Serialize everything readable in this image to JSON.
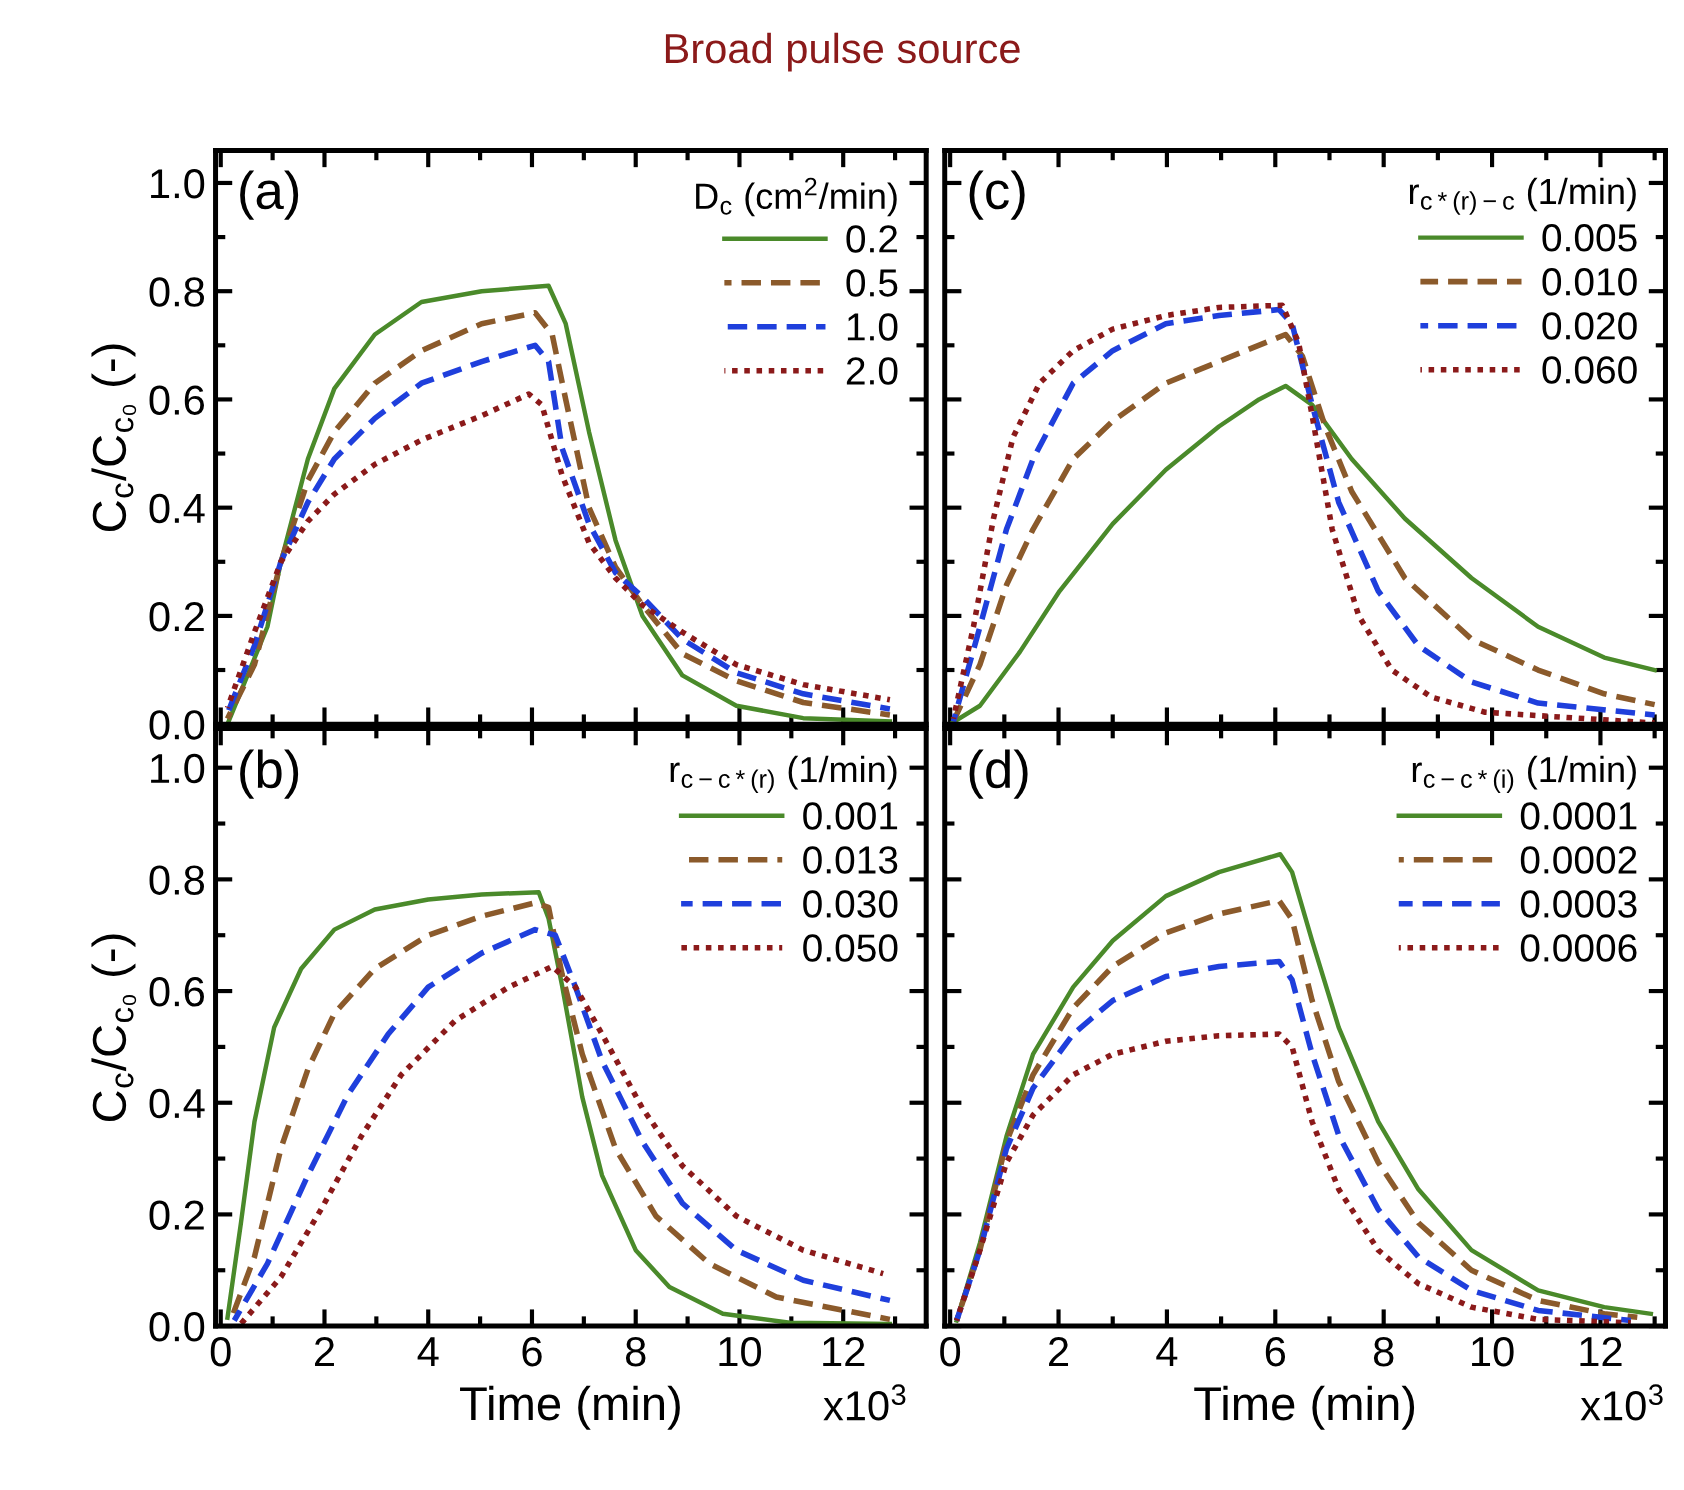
{
  "chart_data": [
    {
      "type": "line",
      "title": "Broad pulse source",
      "annotations": [
        "(a)"
      ],
      "ylabel": "C$_{c}$/C$_{c₀}$ (-)",
      "legend_title": "D$_{c}$ (cm$^{2}$/min)",
      "legend": "top right",
      "tick_labels": "y",
      "grid": false,
      "xlim": [
        -0.1,
        13.6
      ],
      "xticks": [
        0,
        2,
        4,
        6,
        8,
        10,
        12
      ],
      "ylim": [
        0,
        1.06
      ],
      "yticks": [
        {
          "value": 0,
          "label": "0.0"
        },
        {
          "value": 0.2,
          "label": "0.2"
        },
        {
          "value": 0.4,
          "label": "0.4"
        },
        {
          "value": 0.6,
          "label": "0.6"
        },
        {
          "value": 0.8,
          "label": "0.8"
        },
        {
          "value": 1.0,
          "label": "1.0"
        }
      ],
      "series": [
        {
          "name": "0.2",
          "color": "#4a8a2a",
          "line_style": "solid",
          "x": [
            0.13,
            0.9,
            1.16,
            1.68,
            2.19,
            2.97,
            3.87,
            5.03,
            6.32,
            6.65,
            7.1,
            7.61,
            8.13,
            8.9,
            9.94,
            11.23,
            12.9
          ],
          "values": [
            0.0,
            0.18,
            0.3,
            0.49,
            0.62,
            0.72,
            0.78,
            0.8,
            0.81,
            0.74,
            0.54,
            0.34,
            0.2,
            0.09,
            0.034,
            0.011,
            0.005
          ]
        },
        {
          "name": "0.5",
          "color": "#8b5a2b",
          "line_style": "dashed",
          "x": [
            0.13,
            0.65,
            1.16,
            1.68,
            2.19,
            2.97,
            3.87,
            5.03,
            6.06,
            6.39,
            6.65,
            7.1,
            7.61,
            8.13,
            8.9,
            9.94,
            11.23,
            12.9
          ],
          "values": [
            0.01,
            0.11,
            0.3,
            0.45,
            0.54,
            0.63,
            0.69,
            0.74,
            0.76,
            0.72,
            0.6,
            0.4,
            0.29,
            0.22,
            0.13,
            0.08,
            0.04,
            0.017
          ]
        },
        {
          "name": "1.0",
          "color": "#1f3fdc",
          "line_style": "dashed",
          "x": [
            0.13,
            0.65,
            1.16,
            1.68,
            2.19,
            2.97,
            3.87,
            5.03,
            6.06,
            6.32,
            6.58,
            7.1,
            7.61,
            8.13,
            8.9,
            9.94,
            11.23,
            12.9
          ],
          "values": [
            0.02,
            0.145,
            0.3,
            0.41,
            0.49,
            0.565,
            0.63,
            0.67,
            0.7,
            0.67,
            0.51,
            0.37,
            0.28,
            0.235,
            0.157,
            0.095,
            0.056,
            0.028
          ]
        },
        {
          "name": "2.0",
          "color": "#8b1a1a",
          "line_style": "dotted",
          "x": [
            0.13,
            0.65,
            1.16,
            1.68,
            2.19,
            2.97,
            3.87,
            5.03,
            5.94,
            6.19,
            6.58,
            7.1,
            7.61,
            8.13,
            8.9,
            9.94,
            11.23,
            12.9
          ],
          "values": [
            0.03,
            0.17,
            0.3,
            0.375,
            0.425,
            0.48,
            0.525,
            0.57,
            0.61,
            0.59,
            0.46,
            0.335,
            0.27,
            0.22,
            0.17,
            0.11,
            0.073,
            0.045
          ]
        }
      ]
    },
    {
      "type": "line",
      "annotations": [
        "(c)"
      ],
      "legend_title": "r$_{c*(r)−c}$ (1/min)",
      "legend": "top right",
      "tick_labels": false,
      "grid": false,
      "xlim": [
        -0.1,
        13.2
      ],
      "xticks": [
        0,
        2,
        4,
        6,
        8,
        10,
        12
      ],
      "ylim": [
        0,
        1.06
      ],
      "yticks": [
        0,
        0.2,
        0.4,
        0.6,
        0.8,
        1.0
      ],
      "series": [
        {
          "name": "0.005",
          "color": "#4a8a2a",
          "line_style": "solid",
          "x": [
            0.0,
            0.55,
            1.29,
            2.02,
            3.0,
            3.98,
            4.96,
            5.7,
            6.19,
            6.68,
            7.41,
            8.39,
            9.62,
            10.85,
            12.07,
            13.0
          ],
          "values": [
            0.0,
            0.034,
            0.134,
            0.246,
            0.37,
            0.47,
            0.55,
            0.6,
            0.625,
            0.59,
            0.49,
            0.38,
            0.27,
            0.18,
            0.123,
            0.1
          ]
        },
        {
          "name": "0.010",
          "color": "#8b5a2b",
          "line_style": "dashed",
          "x": [
            0.06,
            0.55,
            1.04,
            1.53,
            2.27,
            3.0,
            3.98,
            4.96,
            5.94,
            6.19,
            6.5,
            6.92,
            7.41,
            8.39,
            9.62,
            10.85,
            12.07,
            13.0
          ],
          "values": [
            0.005,
            0.11,
            0.257,
            0.36,
            0.49,
            0.56,
            0.63,
            0.67,
            0.71,
            0.72,
            0.68,
            0.55,
            0.43,
            0.27,
            0.157,
            0.1,
            0.056,
            0.036
          ]
        },
        {
          "name": "0.020",
          "color": "#1f3fdc",
          "line_style": "dashed",
          "x": [
            0.06,
            0.55,
            1.04,
            1.53,
            2.27,
            3.0,
            3.98,
            4.96,
            6.07,
            6.31,
            6.68,
            7.17,
            7.9,
            8.64,
            9.62,
            10.85,
            13.0
          ],
          "values": [
            0.005,
            0.18,
            0.36,
            0.49,
            0.63,
            0.69,
            0.74,
            0.755,
            0.766,
            0.74,
            0.59,
            0.41,
            0.246,
            0.145,
            0.078,
            0.039,
            0.017
          ]
        },
        {
          "name": "0.060",
          "color": "#8b1a1a",
          "line_style": "dotted",
          "x": [
            0.06,
            0.43,
            0.8,
            1.16,
            1.65,
            2.27,
            3.0,
            3.98,
            4.96,
            6.13,
            6.43,
            6.68,
            7.05,
            7.54,
            8.15,
            8.88,
            9.87,
            13.0
          ],
          "values": [
            0.01,
            0.18,
            0.38,
            0.53,
            0.63,
            0.69,
            0.73,
            0.755,
            0.77,
            0.774,
            0.705,
            0.57,
            0.36,
            0.2,
            0.1,
            0.05,
            0.022,
            0.002
          ]
        }
      ]
    },
    {
      "type": "line",
      "annotations": [
        "(b)",
        "x10$^{3}$"
      ],
      "xlabel": "Time (min)",
      "ylabel": "C$_{c}$/C$_{c₀}$ (-)",
      "legend_title": "r$_{c−c*(r)}$ (1/min)",
      "legend": "top right",
      "grid": false,
      "xlim": [
        -0.1,
        13.6
      ],
      "xticks": [
        0,
        2,
        4,
        6,
        8,
        10,
        12
      ],
      "ylim": [
        0,
        1.07
      ],
      "yticks": [
        {
          "value": 0,
          "label": "0.0"
        },
        {
          "value": 0.2,
          "label": "0.2"
        },
        {
          "value": 0.4,
          "label": "0.4"
        },
        {
          "value": 0.6,
          "label": "0.6"
        },
        {
          "value": 0.8,
          "label": "0.8"
        },
        {
          "value": 1.0,
          "label": "1.0"
        }
      ],
      "series": [
        {
          "name": "0.001",
          "color": "#4a8a2a",
          "line_style": "solid",
          "x": [
            0.13,
            0.39,
            0.65,
            1.03,
            1.55,
            2.19,
            2.97,
            4.0,
            5.03,
            6.13,
            6.32,
            6.58,
            6.97,
            7.35,
            8.0,
            8.65,
            9.68,
            10.97,
            12.9
          ],
          "values": [
            0.015,
            0.185,
            0.366,
            0.535,
            0.64,
            0.71,
            0.746,
            0.764,
            0.773,
            0.777,
            0.73,
            0.61,
            0.41,
            0.27,
            0.136,
            0.07,
            0.022,
            0.006,
            0.004
          ]
        },
        {
          "name": "0.013",
          "color": "#8b5a2b",
          "line_style": "dashed",
          "x": [
            0.19,
            0.65,
            1.16,
            1.68,
            2.19,
            2.97,
            4.0,
            5.03,
            6.06,
            6.32,
            6.58,
            6.97,
            7.61,
            8.39,
            9.42,
            10.71,
            12.9
          ],
          "values": [
            0.01,
            0.124,
            0.318,
            0.46,
            0.56,
            0.64,
            0.7,
            0.734,
            0.758,
            0.75,
            0.63,
            0.487,
            0.318,
            0.197,
            0.112,
            0.052,
            0.012
          ]
        },
        {
          "name": "0.030",
          "color": "#1f3fdc",
          "line_style": "dashed",
          "x": [
            0.26,
            0.9,
            1.68,
            2.45,
            3.23,
            4.0,
            5.03,
            6.06,
            6.45,
            6.84,
            7.35,
            8.13,
            8.9,
            9.94,
            11.23,
            12.9
          ],
          "values": [
            0.01,
            0.112,
            0.27,
            0.414,
            0.523,
            0.607,
            0.668,
            0.71,
            0.7,
            0.607,
            0.475,
            0.33,
            0.22,
            0.136,
            0.082,
            0.046
          ]
        },
        {
          "name": "0.050",
          "color": "#8b1a1a",
          "line_style": "dotted",
          "x": [
            0.39,
            1.16,
            1.94,
            2.71,
            3.48,
            4.52,
            5.55,
            6.39,
            6.84,
            7.35,
            8.13,
            8.9,
            9.94,
            11.23,
            12.77
          ],
          "values": [
            0.004,
            0.088,
            0.21,
            0.34,
            0.45,
            0.547,
            0.607,
            0.644,
            0.607,
            0.523,
            0.39,
            0.287,
            0.197,
            0.136,
            0.094
          ]
        }
      ]
    },
    {
      "type": "line",
      "annotations": [
        "(d)",
        "x10$^{3}$"
      ],
      "xlabel": "Time (min)",
      "legend_title": "r$_{c−c*(i)}$ (1/min)",
      "legend": "top right",
      "tick_labels": "x",
      "grid": false,
      "xlim": [
        -0.1,
        13.2
      ],
      "xticks": [
        0,
        2,
        4,
        6,
        8,
        10,
        12
      ],
      "ylim": [
        0,
        1.07
      ],
      "yticks": [
        0,
        0.2,
        0.4,
        0.6,
        0.8,
        1.0
      ],
      "series": [
        {
          "name": "0.0001",
          "color": "#4a8a2a",
          "line_style": "solid",
          "x": [
            0.12,
            0.55,
            1.04,
            1.53,
            2.27,
            3.0,
            3.98,
            4.96,
            6.09,
            6.31,
            6.68,
            7.17,
            7.9,
            8.64,
            9.62,
            10.85,
            12.07,
            12.93
          ],
          "values": [
            0.01,
            0.149,
            0.34,
            0.487,
            0.607,
            0.69,
            0.77,
            0.813,
            0.845,
            0.813,
            0.69,
            0.535,
            0.366,
            0.245,
            0.136,
            0.064,
            0.034,
            0.022
          ]
        },
        {
          "name": "0.0002",
          "color": "#8b5a2b",
          "line_style": "dashed",
          "x": [
            0.12,
            0.55,
            1.04,
            1.53,
            2.27,
            3.0,
            3.98,
            4.96,
            6.07,
            6.31,
            6.68,
            7.17,
            7.9,
            8.64,
            9.62,
            10.85,
            12.07,
            12.68
          ],
          "values": [
            0.01,
            0.136,
            0.33,
            0.45,
            0.57,
            0.644,
            0.704,
            0.738,
            0.762,
            0.728,
            0.583,
            0.438,
            0.293,
            0.185,
            0.1,
            0.046,
            0.022,
            0.016
          ]
        },
        {
          "name": "0.0003",
          "color": "#1f3fdc",
          "line_style": "dashed",
          "x": [
            0.12,
            0.55,
            1.04,
            1.53,
            2.27,
            3.0,
            3.98,
            4.96,
            6.07,
            6.31,
            6.68,
            7.17,
            7.9,
            8.64,
            9.62,
            10.85,
            12.56
          ],
          "values": [
            0.01,
            0.136,
            0.318,
            0.426,
            0.523,
            0.583,
            0.626,
            0.644,
            0.653,
            0.62,
            0.487,
            0.342,
            0.209,
            0.124,
            0.064,
            0.028,
            0.01
          ]
        },
        {
          "name": "0.0006",
          "color": "#8b1a1a",
          "line_style": "dotted",
          "x": [
            0.12,
            0.55,
            1.04,
            1.53,
            2.27,
            3.0,
            3.98,
            4.96,
            6.07,
            6.31,
            6.68,
            7.17,
            7.9,
            8.64,
            9.62,
            10.85,
            12.56
          ],
          "values": [
            0.01,
            0.136,
            0.293,
            0.378,
            0.45,
            0.487,
            0.51,
            0.52,
            0.523,
            0.5,
            0.366,
            0.245,
            0.136,
            0.076,
            0.034,
            0.012,
            0.006
          ]
        }
      ]
    }
  ]
}
